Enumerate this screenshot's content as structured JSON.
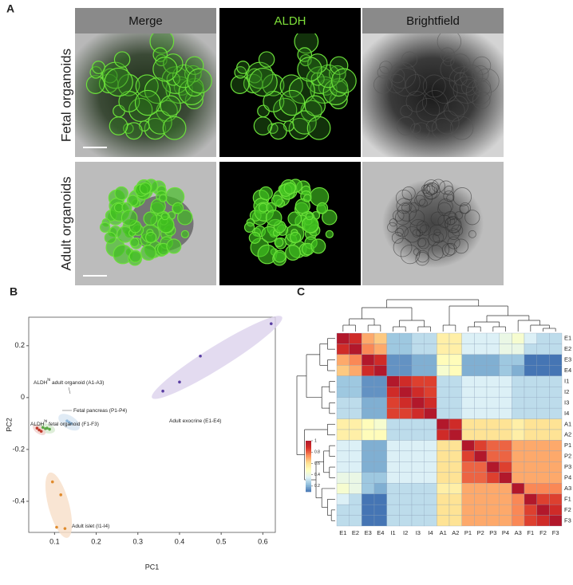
{
  "panels": {
    "a": {
      "label": "A",
      "columns": [
        "Merge",
        "ALDH",
        "Brightfield"
      ],
      "rows": [
        "Fetal organoids",
        "Adult organoids"
      ]
    }
  },
  "chart_data": [
    {
      "type": "scatter",
      "panel": "B",
      "xlabel": "PC1",
      "ylabel": "PC2",
      "xlim": [
        0.038,
        0.63
      ],
      "ylim": [
        -0.52,
        0.31
      ],
      "xticks": [
        0.1,
        0.2,
        0.3,
        0.4,
        0.5,
        0.6
      ],
      "yticks": [
        0.2,
        0,
        -0.2,
        -0.4
      ],
      "series": [
        {
          "color": "#5a3fa3",
          "fill": "#dcd2ec",
          "x": [
            0.36,
            0.4,
            0.45,
            0.62
          ],
          "y": [
            0.025,
            0.06,
            0.16,
            0.285
          ],
          "annotation": {
            "text": "Adult exocrine (E1-E4)"
          }
        },
        {
          "color": "#e08b2d",
          "fill": "#f7dfc8",
          "x": [
            0.095,
            0.115,
            0.105,
            0.125
          ],
          "y": [
            -0.325,
            -0.375,
            -0.5,
            -0.505
          ],
          "annotation": {
            "text": "Adult islet (I1-I4)"
          }
        },
        {
          "color": "#8fb8dc",
          "fill": "#d8e6f3",
          "x": [
            0.13,
            0.135,
            0.14
          ],
          "y": [
            -0.09,
            -0.095,
            -0.1
          ],
          "annotation": {
            "text": "ALDH",
            "sup": "hi",
            "tail": " adult organoid (A1-A3)"
          }
        },
        {
          "color": "#5aa845",
          "fill": "#d6ead0",
          "x": [
            0.072,
            0.078,
            0.082,
            0.088
          ],
          "y": [
            -0.115,
            -0.12,
            -0.118,
            -0.122
          ],
          "annotation": {
            "text": "Fetal pancreas (P1-P4)"
          }
        },
        {
          "color": "#c0392b",
          "fill": "#f0d0cc",
          "x": [
            0.058,
            0.063,
            0.068
          ],
          "y": [
            -0.118,
            -0.125,
            -0.13
          ],
          "annotation": {
            "text": "ALDH",
            "sup": "hi",
            "tail": " fetal organoid (F1-F3)"
          }
        }
      ]
    },
    {
      "type": "heatmap",
      "panel": "C",
      "labels": [
        "E1",
        "E2",
        "E3",
        "E4",
        "I1",
        "I2",
        "I3",
        "I4",
        "A1",
        "A2",
        "P1",
        "P2",
        "P3",
        "P4",
        "A3",
        "F1",
        "F2",
        "F3"
      ],
      "clim": [
        0.1,
        1
      ],
      "cbar_ticks": [
        0.2,
        0.4,
        0.6,
        0.8,
        1
      ],
      "colormap": [
        "#4575b4",
        "#91bfdb",
        "#e0f3f8",
        "#ffffbf",
        "#fee090",
        "#fc8d59",
        "#d73027",
        "#b2182b"
      ],
      "values": [
        [
          1,
          0.9,
          0.7,
          0.65,
          0.25,
          0.25,
          0.3,
          0.3,
          0.55,
          0.55,
          0.35,
          0.35,
          0.35,
          0.4,
          0.45,
          0.35,
          0.3,
          0.3
        ],
        [
          0.9,
          1,
          0.75,
          0.7,
          0.25,
          0.25,
          0.3,
          0.3,
          0.55,
          0.55,
          0.35,
          0.35,
          0.35,
          0.4,
          0.4,
          0.3,
          0.3,
          0.3
        ],
        [
          0.7,
          0.75,
          1,
          0.9,
          0.15,
          0.15,
          0.2,
          0.2,
          0.5,
          0.5,
          0.2,
          0.2,
          0.2,
          0.25,
          0.25,
          0.1,
          0.1,
          0.1
        ],
        [
          0.65,
          0.7,
          0.9,
          1,
          0.15,
          0.15,
          0.2,
          0.2,
          0.45,
          0.5,
          0.2,
          0.2,
          0.2,
          0.25,
          0.2,
          0.1,
          0.1,
          0.1
        ],
        [
          0.25,
          0.25,
          0.15,
          0.15,
          1,
          0.9,
          0.85,
          0.85,
          0.3,
          0.3,
          0.35,
          0.35,
          0.35,
          0.35,
          0.3,
          0.3,
          0.3,
          0.3
        ],
        [
          0.25,
          0.25,
          0.15,
          0.15,
          0.9,
          1,
          0.9,
          0.85,
          0.3,
          0.3,
          0.35,
          0.35,
          0.35,
          0.35,
          0.3,
          0.3,
          0.3,
          0.3
        ],
        [
          0.3,
          0.3,
          0.2,
          0.2,
          0.85,
          0.9,
          1,
          0.9,
          0.3,
          0.3,
          0.35,
          0.35,
          0.35,
          0.35,
          0.3,
          0.3,
          0.3,
          0.3
        ],
        [
          0.3,
          0.3,
          0.2,
          0.2,
          0.85,
          0.85,
          0.9,
          1,
          0.3,
          0.3,
          0.35,
          0.35,
          0.35,
          0.35,
          0.3,
          0.3,
          0.3,
          0.3
        ],
        [
          0.55,
          0.55,
          0.5,
          0.45,
          0.3,
          0.3,
          0.3,
          0.3,
          1,
          0.9,
          0.6,
          0.6,
          0.6,
          0.6,
          0.55,
          0.6,
          0.6,
          0.6
        ],
        [
          0.55,
          0.55,
          0.5,
          0.5,
          0.3,
          0.3,
          0.3,
          0.3,
          0.9,
          1,
          0.6,
          0.6,
          0.6,
          0.6,
          0.55,
          0.6,
          0.6,
          0.6
        ],
        [
          0.35,
          0.35,
          0.2,
          0.2,
          0.35,
          0.35,
          0.35,
          0.35,
          0.6,
          0.6,
          1,
          0.85,
          0.8,
          0.8,
          0.7,
          0.7,
          0.7,
          0.7
        ],
        [
          0.35,
          0.35,
          0.2,
          0.2,
          0.35,
          0.35,
          0.35,
          0.35,
          0.6,
          0.6,
          0.85,
          1,
          0.8,
          0.8,
          0.7,
          0.7,
          0.7,
          0.7
        ],
        [
          0.35,
          0.35,
          0.2,
          0.2,
          0.35,
          0.35,
          0.35,
          0.35,
          0.6,
          0.6,
          0.8,
          0.8,
          1,
          0.85,
          0.7,
          0.7,
          0.7,
          0.7
        ],
        [
          0.4,
          0.4,
          0.25,
          0.25,
          0.35,
          0.35,
          0.35,
          0.35,
          0.6,
          0.6,
          0.8,
          0.8,
          0.85,
          1,
          0.7,
          0.7,
          0.7,
          0.7
        ],
        [
          0.45,
          0.4,
          0.25,
          0.2,
          0.3,
          0.3,
          0.3,
          0.3,
          0.55,
          0.55,
          0.7,
          0.7,
          0.7,
          0.7,
          1,
          0.75,
          0.75,
          0.75
        ],
        [
          0.35,
          0.3,
          0.1,
          0.1,
          0.3,
          0.3,
          0.3,
          0.3,
          0.6,
          0.6,
          0.7,
          0.7,
          0.7,
          0.7,
          0.75,
          1,
          0.85,
          0.85
        ],
        [
          0.3,
          0.3,
          0.1,
          0.1,
          0.3,
          0.3,
          0.3,
          0.3,
          0.6,
          0.6,
          0.7,
          0.7,
          0.7,
          0.7,
          0.75,
          0.85,
          1,
          0.9
        ],
        [
          0.3,
          0.3,
          0.1,
          0.1,
          0.3,
          0.3,
          0.3,
          0.3,
          0.6,
          0.6,
          0.7,
          0.7,
          0.7,
          0.7,
          0.75,
          0.85,
          0.9,
          1
        ]
      ]
    }
  ]
}
